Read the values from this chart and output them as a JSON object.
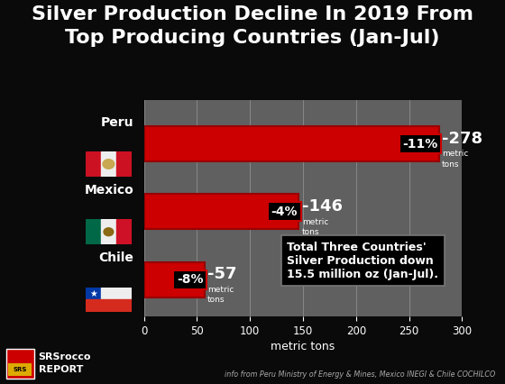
{
  "title_line1": "Silver Production Decline In 2019 From",
  "title_line2": "Top Producing Countries (Jan-Jul)",
  "title_color": "#ffffff",
  "title_fontsize": 16,
  "bg_color": "#0a0a0a",
  "plot_bg_color": "#606060",
  "bar_color": "#cc0000",
  "bar_edge_color": "#990000",
  "categories": [
    "Peru",
    "Mexico",
    "Chile"
  ],
  "values": [
    278,
    146,
    57
  ],
  "pct_labels": [
    "-11%",
    "-4%",
    "-8%"
  ],
  "value_labels": [
    "-278",
    "-146",
    "-57"
  ],
  "xlabel": "metric tons",
  "xlim": [
    0,
    300
  ],
  "xticks": [
    0,
    50,
    100,
    150,
    200,
    250,
    300
  ],
  "grid_color": "#888888",
  "annotation_box_text": "Total Three Countries'\nSilver Production down\n15.5 million oz (Jan-Jul).",
  "source_text": "info from Peru Ministry of Energy & Mines, Mexico INEGI & Chile COCHILCO",
  "logo_text1": "SRSrocco",
  "logo_text2": "REPORT"
}
